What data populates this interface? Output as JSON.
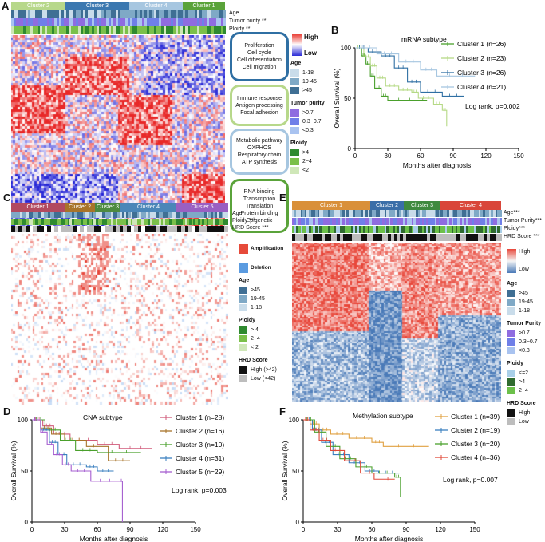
{
  "panelA": {
    "label": "A",
    "clusters": [
      {
        "name": "Cluster 2",
        "color": "#b7d88a"
      },
      {
        "name": "Cluster 3",
        "color": "#3b78b0"
      },
      {
        "name": "Cluster 4",
        "color": "#a6c6e0"
      },
      {
        "name": "Cluster 1",
        "color": "#5aa33a"
      }
    ],
    "rows": [
      "Age",
      "Tumor purity **",
      "Ploidy **"
    ],
    "expr_legend": {
      "high": "High",
      "low": "Low"
    },
    "pathways": [
      {
        "lines": [
          "Proliferation",
          "Cell cycle",
          "Cell differentiation",
          "Cell migration"
        ],
        "color": "#2f6fa3"
      },
      {
        "lines": [
          "Immune response",
          "Antigen processing",
          "Focal adhesion"
        ],
        "color": "#b7d88a"
      },
      {
        "lines": [
          "Metabolic pathway",
          "OXPHOS",
          "Respiratory chain",
          "ATP synthesis"
        ],
        "color": "#a6c6e0"
      },
      {
        "lines": [
          "RNA binding",
          "Transcription",
          "Translation",
          "Protein binding",
          "Epigenetic"
        ],
        "color": "#5aa33a"
      }
    ],
    "legend": {
      "age_title": "Age",
      "age": [
        "1-18",
        "19-45",
        ">45"
      ],
      "purity_title": "Tumor purity",
      "purity": [
        ">0.7",
        "0.3~0.7",
        "<0.3"
      ],
      "ploidy_title": "Ploidy",
      "ploidy": [
        ">4",
        "2~4",
        "<2"
      ]
    }
  },
  "panelB": {
    "label": "B",
    "chart_data": {
      "type": "line",
      "title": "mRNA subtype",
      "xlabel": "Months after diagnosis",
      "ylabel": "Overall Survival (%)",
      "xlim": [
        0,
        150
      ],
      "ylim": [
        0,
        100
      ],
      "xticks": [
        "0",
        "30",
        "60",
        "90",
        "120",
        "150"
      ],
      "yticks": [
        "0",
        "50",
        "100"
      ],
      "series": [
        {
          "name": "Cluster 1 (n=26)",
          "color": "#4aa02c",
          "steps": [
            [
              0,
              100
            ],
            [
              6,
              92
            ],
            [
              10,
              84
            ],
            [
              14,
              72
            ],
            [
              18,
              60
            ],
            [
              24,
              52
            ],
            [
              30,
              48
            ],
            [
              60,
              48
            ],
            [
              66,
              48
            ]
          ]
        },
        {
          "name": "Cluster 2 (n=23)",
          "color": "#b5d985",
          "steps": [
            [
              0,
              100
            ],
            [
              8,
              91
            ],
            [
              14,
              82
            ],
            [
              20,
              70
            ],
            [
              28,
              62
            ],
            [
              40,
              58
            ],
            [
              52,
              56
            ],
            [
              58,
              50
            ],
            [
              72,
              44
            ],
            [
              80,
              38
            ],
            [
              84,
              22
            ]
          ]
        },
        {
          "name": "Cluster 3 (n=26)",
          "color": "#2f6fa3",
          "steps": [
            [
              0,
              100
            ],
            [
              12,
              96
            ],
            [
              24,
              92
            ],
            [
              36,
              80
            ],
            [
              48,
              66
            ],
            [
              60,
              56
            ],
            [
              80,
              52
            ],
            [
              100,
              52
            ]
          ]
        },
        {
          "name": "Cluster 4 (n=21)",
          "color": "#a6c6e0",
          "steps": [
            [
              0,
              100
            ],
            [
              20,
              94
            ],
            [
              40,
              86
            ],
            [
              60,
              78
            ],
            [
              75,
              72
            ],
            [
              110,
              72
            ]
          ]
        }
      ],
      "annotation": "Log rank, p=0.002"
    }
  },
  "panelC": {
    "label": "C",
    "clusters": [
      {
        "name": "Cluster 1",
        "color": "#b24a5f"
      },
      {
        "name": "Cluster 2",
        "color": "#a8742a"
      },
      {
        "name": "Cluster 3",
        "color": "#4d8a3f"
      },
      {
        "name": "Cluster 4",
        "color": "#4a86b8"
      },
      {
        "name": "Cluster 5",
        "color": "#9a5fc2"
      }
    ],
    "rows": [
      "Age",
      "Ploidy ***",
      "HRD Score ***"
    ],
    "amp_legend": {
      "amp": "Amplification",
      "del": "Deletion"
    },
    "legend": {
      "age_title": "Age",
      "age": [
        ">45",
        "19-45",
        "1-18"
      ],
      "ploidy_title": "Ploidy",
      "ploidy": [
        "> 4",
        "2~4",
        "< 2"
      ],
      "hrd_title": "HRD Score",
      "hrd": [
        "High  (>42)",
        "Low   (<42)"
      ]
    }
  },
  "panelD": {
    "label": "D",
    "chart_data": {
      "type": "line",
      "title": "CNA subtype",
      "xlabel": "Months after diagnosis",
      "ylabel": "Overall Survival (%)",
      "xlim": [
        0,
        150
      ],
      "ylim": [
        0,
        100
      ],
      "xticks": [
        "0",
        "30",
        "60",
        "90",
        "120",
        "150"
      ],
      "yticks": [
        "0",
        "50",
        "100"
      ],
      "series": [
        {
          "name": "Cluster 1 (n=28)",
          "color": "#d05a7a",
          "steps": [
            [
              0,
              100
            ],
            [
              10,
              94
            ],
            [
              20,
              86
            ],
            [
              35,
              80
            ],
            [
              60,
              76
            ],
            [
              80,
              72
            ],
            [
              110,
              72
            ]
          ]
        },
        {
          "name": "Cluster 2 (n=16)",
          "color": "#a8742a",
          "steps": [
            [
              0,
              100
            ],
            [
              8,
              92
            ],
            [
              18,
              86
            ],
            [
              30,
              80
            ],
            [
              50,
              74
            ],
            [
              70,
              60
            ],
            [
              90,
              60
            ]
          ]
        },
        {
          "name": "Cluster 3 (n=10)",
          "color": "#4aa02c",
          "steps": [
            [
              0,
              100
            ],
            [
              12,
              90
            ],
            [
              26,
              80
            ],
            [
              40,
              70
            ],
            [
              60,
              68
            ],
            [
              100,
              68
            ]
          ]
        },
        {
          "name": "Cluster 4 (n=31)",
          "color": "#3a7fbf",
          "steps": [
            [
              0,
              100
            ],
            [
              8,
              90
            ],
            [
              16,
              78
            ],
            [
              24,
              66
            ],
            [
              32,
              56
            ],
            [
              50,
              54
            ],
            [
              60,
              50
            ],
            [
              75,
              50
            ]
          ]
        },
        {
          "name": "Cluster 5 (n=29)",
          "color": "#a65fd0",
          "steps": [
            [
              0,
              100
            ],
            [
              8,
              88
            ],
            [
              14,
              76
            ],
            [
              20,
              66
            ],
            [
              28,
              56
            ],
            [
              36,
              50
            ],
            [
              54,
              40
            ],
            [
              80,
              40
            ],
            [
              83,
              0
            ]
          ]
        }
      ],
      "annotation": "Log rank, p=0.003"
    }
  },
  "panelE": {
    "label": "E",
    "clusters": [
      {
        "name": "Cluster 1",
        "color": "#d9903a"
      },
      {
        "name": "Cluster 2",
        "color": "#3a6ea8"
      },
      {
        "name": "Cluster 3",
        "color": "#3f8a3f"
      },
      {
        "name": "Cluster 4",
        "color": "#d9463a"
      }
    ],
    "rows": [
      "Age***",
      "Tumor Purity***",
      "Ploidy***",
      "HRD Score ***"
    ],
    "expr_legend": {
      "high": "High",
      "low": "Low"
    },
    "legend": {
      "age_title": "Age",
      "age": [
        ">45",
        "19-45",
        "1-18"
      ],
      "purity_title": "Tumor Purity",
      "purity": [
        ">0.7",
        "0.3~0.7",
        "<0.3"
      ],
      "ploidy_title": "Ploidy",
      "ploidy": [
        "<=2",
        ">4",
        "2~4"
      ],
      "hrd_title": "HRD Score",
      "hrd": [
        "High",
        "Low"
      ]
    }
  },
  "panelF": {
    "label": "F",
    "chart_data": {
      "type": "line",
      "title": "Methylation subtype",
      "xlabel": "Months after diagnosis",
      "ylabel": "Overall Survival (%)",
      "xlim": [
        0,
        150
      ],
      "ylim": [
        0,
        100
      ],
      "xticks": [
        "0",
        "30",
        "60",
        "90",
        "120",
        "150"
      ],
      "yticks": [
        "0",
        "50",
        "100"
      ],
      "series": [
        {
          "name": "Cluster 1 (n=39)",
          "color": "#e0a040",
          "steps": [
            [
              0,
              100
            ],
            [
              6,
              96
            ],
            [
              14,
              90
            ],
            [
              24,
              86
            ],
            [
              40,
              82
            ],
            [
              60,
              78
            ],
            [
              70,
              74
            ],
            [
              110,
              74
            ]
          ]
        },
        {
          "name": "Cluster 2 (n=19)",
          "color": "#3a7fbf",
          "steps": [
            [
              0,
              100
            ],
            [
              8,
              90
            ],
            [
              16,
              78
            ],
            [
              26,
              66
            ],
            [
              40,
              58
            ],
            [
              54,
              50
            ],
            [
              66,
              48
            ],
            [
              84,
              48
            ]
          ]
        },
        {
          "name": "Cluster 3 (n=20)",
          "color": "#4aa02c",
          "steps": [
            [
              0,
              100
            ],
            [
              10,
              88
            ],
            [
              20,
              74
            ],
            [
              32,
              62
            ],
            [
              46,
              54
            ],
            [
              60,
              48
            ],
            [
              80,
              44
            ],
            [
              85,
              25
            ]
          ]
        },
        {
          "name": "Cluster 4 (n=36)",
          "color": "#e04a3a",
          "steps": [
            [
              0,
              100
            ],
            [
              6,
              90
            ],
            [
              14,
              80
            ],
            [
              24,
              70
            ],
            [
              36,
              60
            ],
            [
              50,
              48
            ],
            [
              62,
              42
            ],
            [
              80,
              42
            ]
          ]
        }
      ],
      "annotation": "Log rank, p=0.007"
    }
  }
}
